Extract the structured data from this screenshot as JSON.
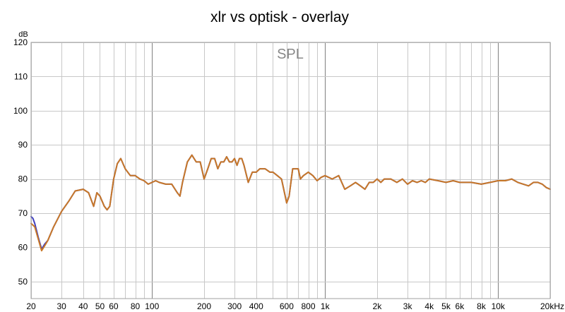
{
  "chart_data": {
    "type": "line",
    "title": "xlr vs optisk - overlay",
    "plot_label": "SPL",
    "ylabel": "dB",
    "xscale": "log",
    "xlim": [
      20,
      20000
    ],
    "ylim": [
      45,
      120
    ],
    "x_ticks": [
      {
        "v": 20,
        "label": "20"
      },
      {
        "v": 30,
        "label": "30"
      },
      {
        "v": 40,
        "label": "40"
      },
      {
        "v": 50,
        "label": "50"
      },
      {
        "v": 60,
        "label": "60"
      },
      {
        "v": 80,
        "label": "80"
      },
      {
        "v": 100,
        "label": "100"
      },
      {
        "v": 200,
        "label": "200"
      },
      {
        "v": 300,
        "label": "300"
      },
      {
        "v": 400,
        "label": "400"
      },
      {
        "v": 600,
        "label": "600"
      },
      {
        "v": 800,
        "label": "800"
      },
      {
        "v": 1000,
        "label": "1k"
      },
      {
        "v": 2000,
        "label": "2k"
      },
      {
        "v": 3000,
        "label": "3k"
      },
      {
        "v": 4000,
        "label": "4k"
      },
      {
        "v": 5000,
        "label": "5k"
      },
      {
        "v": 6000,
        "label": "6k"
      },
      {
        "v": 8000,
        "label": "8k"
      },
      {
        "v": 10000,
        "label": "10k"
      },
      {
        "v": 20000,
        "label": "20kHz"
      }
    ],
    "y_ticks": [
      {
        "v": 50,
        "label": "50"
      },
      {
        "v": 60,
        "label": "60"
      },
      {
        "v": 70,
        "label": "70"
      },
      {
        "v": 80,
        "label": "80"
      },
      {
        "v": 90,
        "label": "90"
      },
      {
        "v": 100,
        "label": "100"
      },
      {
        "v": 110,
        "label": "110"
      },
      {
        "v": 120,
        "label": "120"
      }
    ],
    "grid": true,
    "colors": {
      "background": "#ffffff",
      "plot_background": "#ffffff",
      "grid_minor": "#c8c8c8",
      "grid_major": "#808080",
      "frame": "#a0a0a0"
    },
    "series": [
      {
        "color": "#4040c0",
        "points": [
          [
            20,
            69
          ],
          [
            20.5,
            68.5
          ],
          [
            21,
            67
          ],
          [
            22,
            63
          ],
          [
            23,
            59.5
          ],
          [
            24,
            61
          ],
          [
            25,
            62
          ],
          [
            27,
            66
          ],
          [
            30,
            70.5
          ],
          [
            33,
            73.5
          ],
          [
            36,
            76.5
          ],
          [
            40,
            77
          ],
          [
            43,
            76
          ],
          [
            46,
            72
          ],
          [
            48,
            76
          ],
          [
            50,
            75
          ],
          [
            53,
            72
          ],
          [
            55,
            71
          ],
          [
            57,
            72
          ],
          [
            60,
            80
          ],
          [
            63,
            84.5
          ],
          [
            66,
            86
          ],
          [
            70,
            83
          ],
          [
            75,
            81
          ],
          [
            80,
            81
          ],
          [
            85,
            80
          ],
          [
            90,
            79.5
          ],
          [
            95,
            78.5
          ],
          [
            100,
            79
          ],
          [
            105,
            79.5
          ],
          [
            110,
            79
          ],
          [
            120,
            78.5
          ],
          [
            130,
            78.5
          ],
          [
            140,
            76
          ],
          [
            145,
            75
          ],
          [
            150,
            79
          ],
          [
            160,
            85
          ],
          [
            170,
            87
          ],
          [
            180,
            85
          ],
          [
            190,
            85
          ],
          [
            200,
            80
          ],
          [
            210,
            83
          ],
          [
            220,
            86
          ],
          [
            230,
            86
          ],
          [
            240,
            83
          ],
          [
            250,
            85
          ],
          [
            260,
            85
          ],
          [
            270,
            86.5
          ],
          [
            280,
            85
          ],
          [
            290,
            85
          ],
          [
            300,
            86
          ],
          [
            310,
            84
          ],
          [
            320,
            86
          ],
          [
            330,
            86
          ],
          [
            340,
            84
          ],
          [
            360,
            79
          ],
          [
            380,
            82
          ],
          [
            400,
            82
          ],
          [
            420,
            83
          ],
          [
            450,
            83
          ],
          [
            480,
            82
          ],
          [
            500,
            82
          ],
          [
            530,
            81
          ],
          [
            560,
            80
          ],
          [
            600,
            73
          ],
          [
            620,
            75
          ],
          [
            650,
            83
          ],
          [
            700,
            83
          ],
          [
            720,
            80
          ],
          [
            750,
            81
          ],
          [
            800,
            82
          ],
          [
            850,
            81
          ],
          [
            900,
            79.5
          ],
          [
            950,
            80.5
          ],
          [
            1000,
            81
          ],
          [
            1100,
            80
          ],
          [
            1200,
            81
          ],
          [
            1300,
            77
          ],
          [
            1400,
            78
          ],
          [
            1500,
            79
          ],
          [
            1600,
            78
          ],
          [
            1700,
            77
          ],
          [
            1800,
            79
          ],
          [
            1900,
            79
          ],
          [
            2000,
            80
          ],
          [
            2100,
            79
          ],
          [
            2200,
            80
          ],
          [
            2400,
            80
          ],
          [
            2600,
            79
          ],
          [
            2800,
            80
          ],
          [
            3000,
            78.5
          ],
          [
            3200,
            79.5
          ],
          [
            3400,
            79
          ],
          [
            3600,
            79.5
          ],
          [
            3800,
            79
          ],
          [
            4000,
            80
          ],
          [
            4500,
            79.5
          ],
          [
            5000,
            79
          ],
          [
            5500,
            79.5
          ],
          [
            6000,
            79
          ],
          [
            7000,
            79
          ],
          [
            8000,
            78.5
          ],
          [
            9000,
            79
          ],
          [
            10000,
            79.5
          ],
          [
            11000,
            79.5
          ],
          [
            12000,
            80
          ],
          [
            13000,
            79
          ],
          [
            14000,
            78.5
          ],
          [
            15000,
            78
          ],
          [
            16000,
            79
          ],
          [
            17000,
            79
          ],
          [
            18000,
            78.5
          ],
          [
            19000,
            77.5
          ],
          [
            20000,
            77
          ]
        ]
      },
      {
        "color": "#c87828",
        "points": [
          [
            20,
            67
          ],
          [
            21,
            66
          ],
          [
            22,
            62.5
          ],
          [
            23,
            59
          ],
          [
            24,
            60.5
          ],
          [
            25,
            62
          ],
          [
            27,
            66
          ],
          [
            30,
            70.5
          ],
          [
            33,
            73.5
          ],
          [
            36,
            76.5
          ],
          [
            40,
            77
          ],
          [
            43,
            76
          ],
          [
            46,
            72
          ],
          [
            48,
            76
          ],
          [
            50,
            75
          ],
          [
            53,
            72
          ],
          [
            55,
            71
          ],
          [
            57,
            72
          ],
          [
            60,
            80
          ],
          [
            63,
            84.5
          ],
          [
            66,
            86
          ],
          [
            70,
            83
          ],
          [
            75,
            81
          ],
          [
            80,
            81
          ],
          [
            85,
            80
          ],
          [
            90,
            79.5
          ],
          [
            95,
            78.5
          ],
          [
            100,
            79
          ],
          [
            105,
            79.5
          ],
          [
            110,
            79
          ],
          [
            120,
            78.5
          ],
          [
            130,
            78.5
          ],
          [
            140,
            76
          ],
          [
            145,
            75
          ],
          [
            150,
            79
          ],
          [
            160,
            85
          ],
          [
            170,
            87
          ],
          [
            180,
            85
          ],
          [
            190,
            85
          ],
          [
            200,
            80
          ],
          [
            210,
            83
          ],
          [
            220,
            86
          ],
          [
            230,
            86
          ],
          [
            240,
            83
          ],
          [
            250,
            85
          ],
          [
            260,
            85
          ],
          [
            270,
            86.5
          ],
          [
            280,
            85
          ],
          [
            290,
            85
          ],
          [
            300,
            86
          ],
          [
            310,
            84
          ],
          [
            320,
            86
          ],
          [
            330,
            86
          ],
          [
            340,
            84
          ],
          [
            360,
            79
          ],
          [
            380,
            82
          ],
          [
            400,
            82
          ],
          [
            420,
            83
          ],
          [
            450,
            83
          ],
          [
            480,
            82
          ],
          [
            500,
            82
          ],
          [
            530,
            81
          ],
          [
            560,
            80
          ],
          [
            600,
            73
          ],
          [
            620,
            75
          ],
          [
            650,
            83
          ],
          [
            700,
            83
          ],
          [
            720,
            80
          ],
          [
            750,
            81
          ],
          [
            800,
            82
          ],
          [
            850,
            81
          ],
          [
            900,
            79.5
          ],
          [
            950,
            80.5
          ],
          [
            1000,
            81
          ],
          [
            1100,
            80
          ],
          [
            1200,
            81
          ],
          [
            1300,
            77
          ],
          [
            1400,
            78
          ],
          [
            1500,
            79
          ],
          [
            1600,
            78
          ],
          [
            1700,
            77
          ],
          [
            1800,
            79
          ],
          [
            1900,
            79
          ],
          [
            2000,
            80
          ],
          [
            2100,
            79
          ],
          [
            2200,
            80
          ],
          [
            2400,
            80
          ],
          [
            2600,
            79
          ],
          [
            2800,
            80
          ],
          [
            3000,
            78.5
          ],
          [
            3200,
            79.5
          ],
          [
            3400,
            79
          ],
          [
            3600,
            79.5
          ],
          [
            3800,
            79
          ],
          [
            4000,
            80
          ],
          [
            4500,
            79.5
          ],
          [
            5000,
            79
          ],
          [
            5500,
            79.5
          ],
          [
            6000,
            79
          ],
          [
            7000,
            79
          ],
          [
            8000,
            78.5
          ],
          [
            9000,
            79
          ],
          [
            10000,
            79.5
          ],
          [
            11000,
            79.5
          ],
          [
            12000,
            80
          ],
          [
            13000,
            79
          ],
          [
            14000,
            78.5
          ],
          [
            15000,
            78
          ],
          [
            16000,
            79
          ],
          [
            17000,
            79
          ],
          [
            18000,
            78.5
          ],
          [
            19000,
            77.5
          ],
          [
            20000,
            77
          ]
        ]
      }
    ]
  }
}
